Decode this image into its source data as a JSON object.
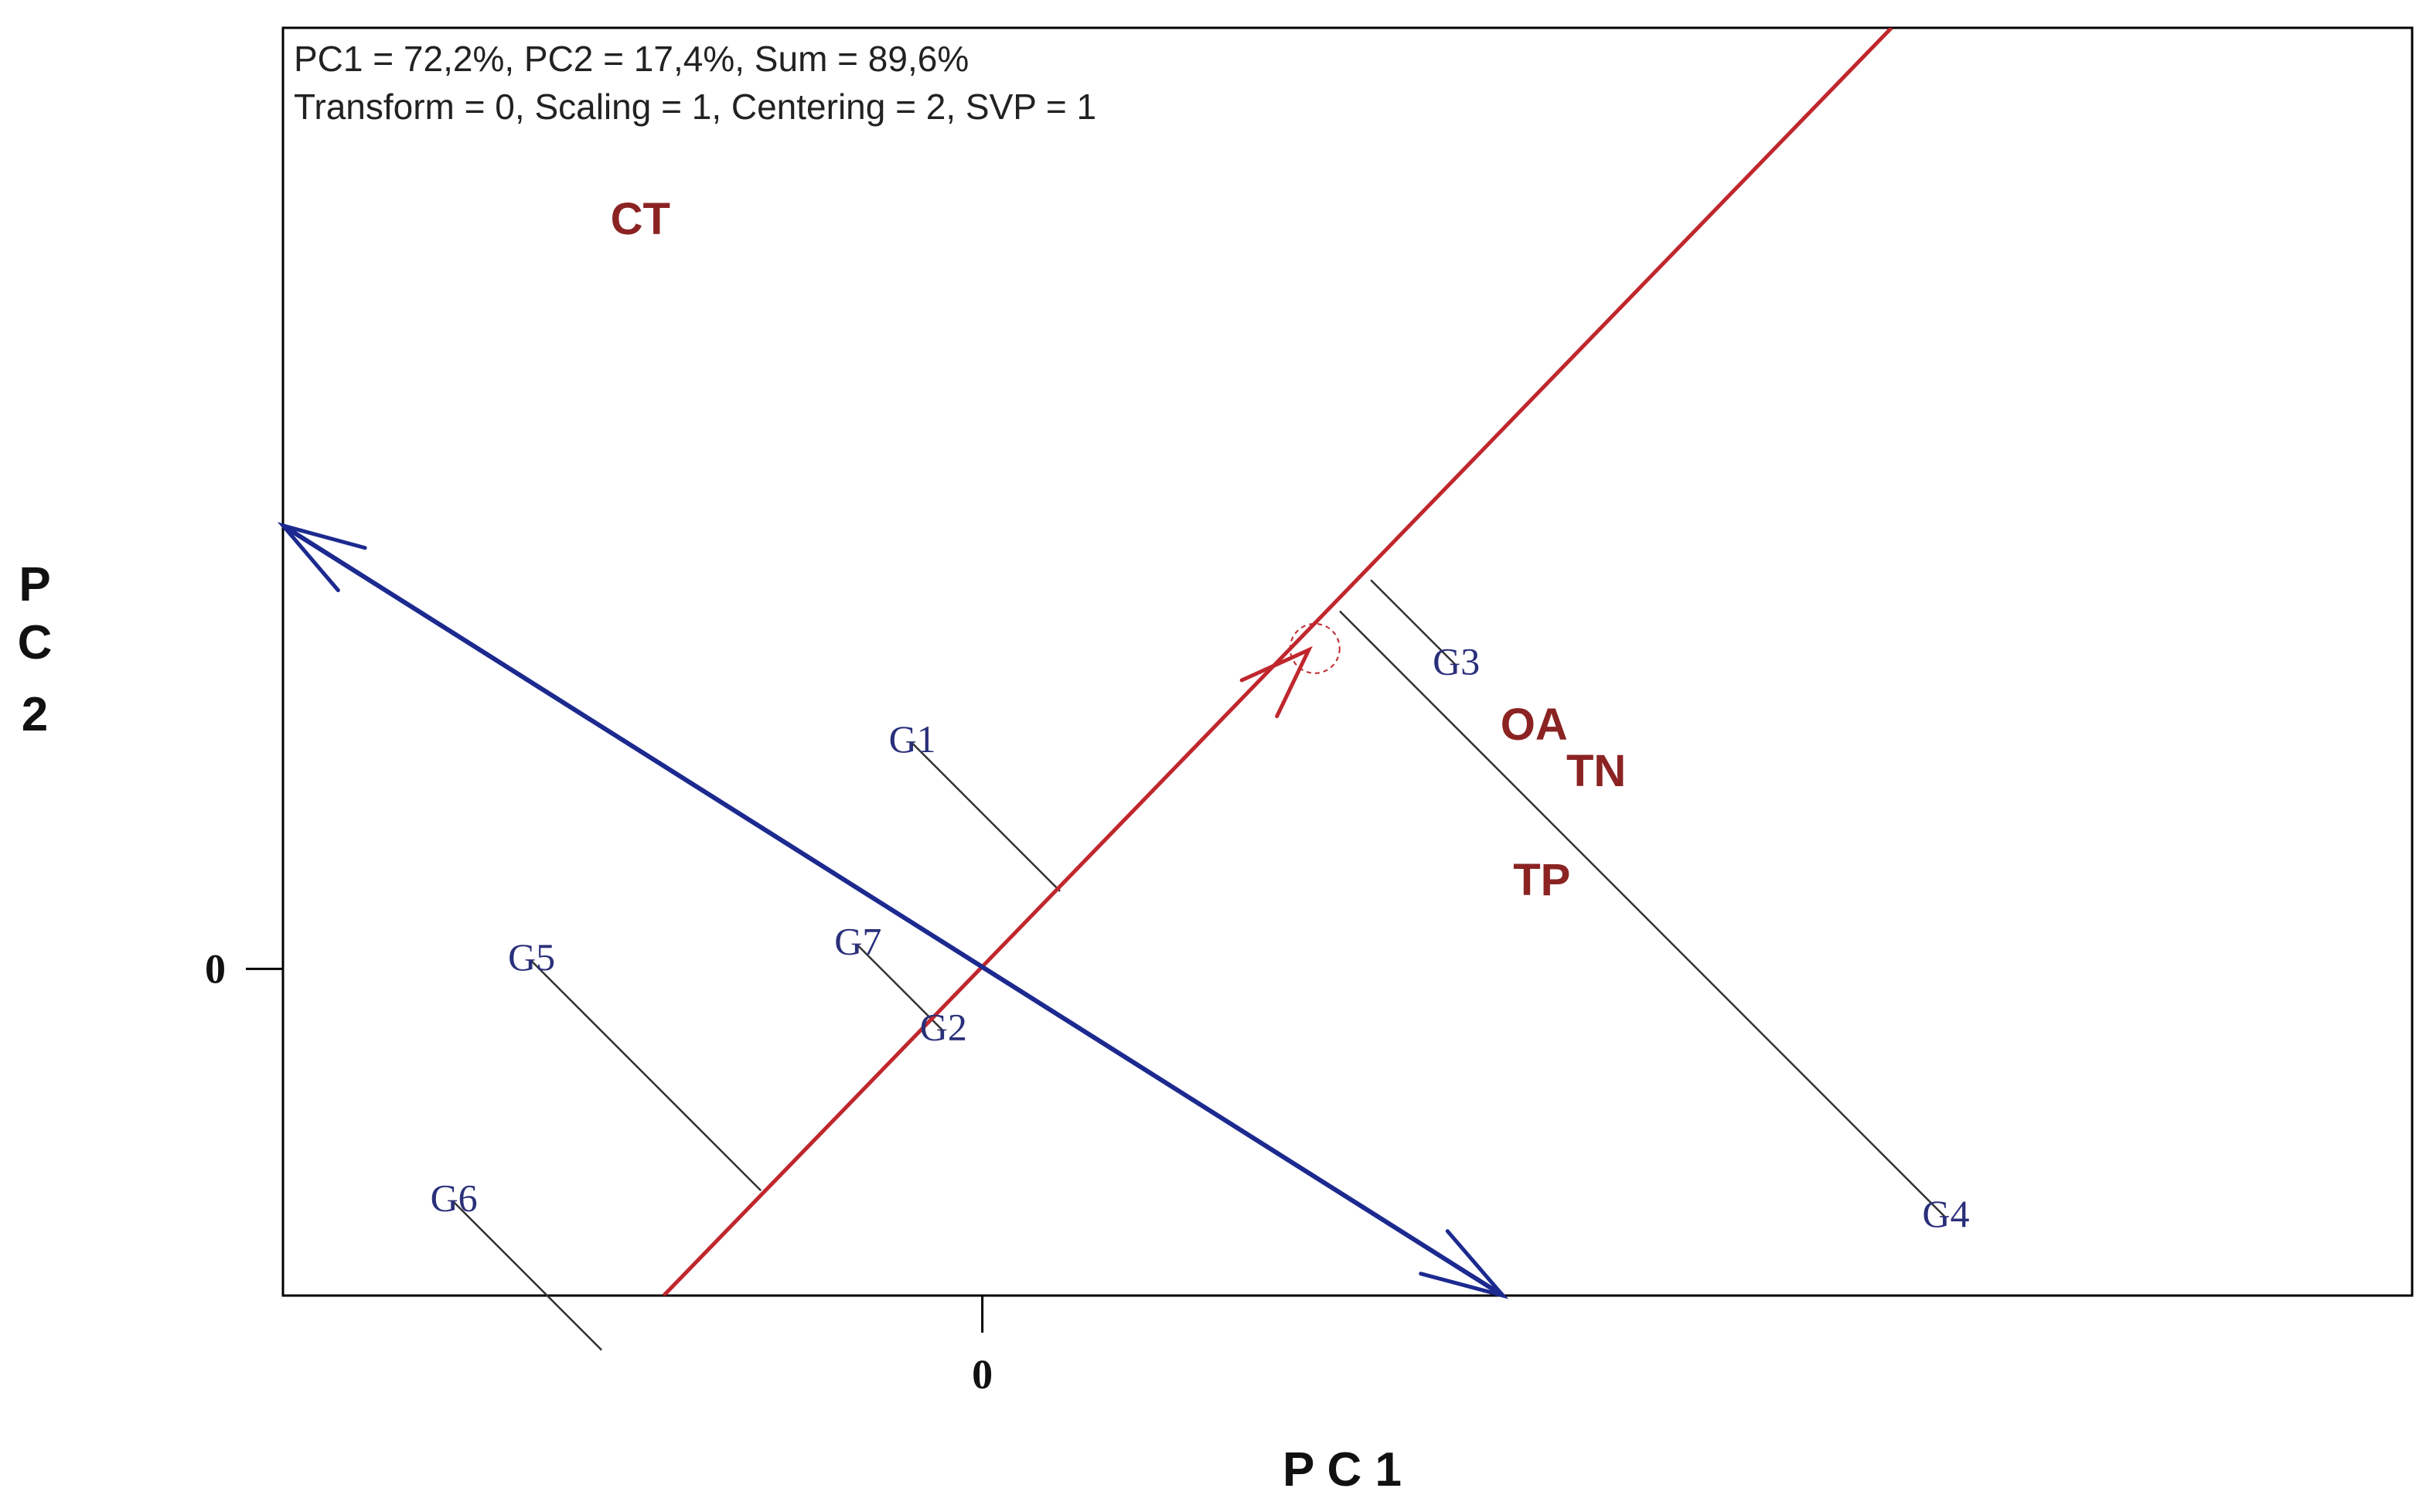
{
  "chart_data": {
    "type": "scatter",
    "subtype": "GGE biplot - mean vs. stability (average environment coordinate)",
    "info_lines": [
      "PC1 = 72,2%, PC2 = 17,4%, Sum = 89,6%",
      "Transform = 0, Scaling = 1, Centering = 2, SVP = 1"
    ],
    "xlabel": "P C 1",
    "ylabel": "P C 2",
    "xlim": [
      -4.5,
      9.2
    ],
    "ylim": [
      -2.1,
      6.05
    ],
    "x_ticks": [
      {
        "value": 0,
        "label": "0"
      }
    ],
    "y_ticks": [
      {
        "value": 0,
        "label": "0"
      }
    ],
    "colors": {
      "genotype": "#2a2f7a",
      "trait": "#8b2323",
      "mean_axis": "#c0272d",
      "perpendicular_axis": "#1c2a8f",
      "projection": "#333333",
      "frame": "#000000"
    },
    "genotypes": [
      {
        "label": "G1",
        "x": -0.45,
        "y": 1.45
      },
      {
        "label": "G2",
        "x": -0.25,
        "y": -0.4
      },
      {
        "label": "G3",
        "x": 3.05,
        "y": 1.95
      },
      {
        "label": "G4",
        "x": 6.2,
        "y": -1.6
      },
      {
        "label": "G5",
        "x": -2.9,
        "y": 0.05
      },
      {
        "label": "G6",
        "x": -3.4,
        "y": -1.5
      },
      {
        "label": "G7",
        "x": -0.8,
        "y": 0.15
      }
    ],
    "traits": [
      {
        "label": "CT",
        "x": -2.2,
        "y": 4.8
      },
      {
        "label": "OA",
        "x": 3.55,
        "y": 1.55
      },
      {
        "label": "TN",
        "x": 3.95,
        "y": 1.25
      },
      {
        "label": "TP",
        "x": 3.6,
        "y": 0.55
      }
    ],
    "mean_axis": {
      "direction": [
        0.707,
        0.707
      ],
      "start": [
        -2.05,
        -2.1
      ],
      "end": [
        5.85,
        6.05
      ],
      "arrow_tip": [
        2.1,
        2.05
      ]
    },
    "perpendicular_axis": {
      "start": [
        -4.5,
        2.85
      ],
      "end": [
        3.35,
        -2.1
      ]
    }
  }
}
